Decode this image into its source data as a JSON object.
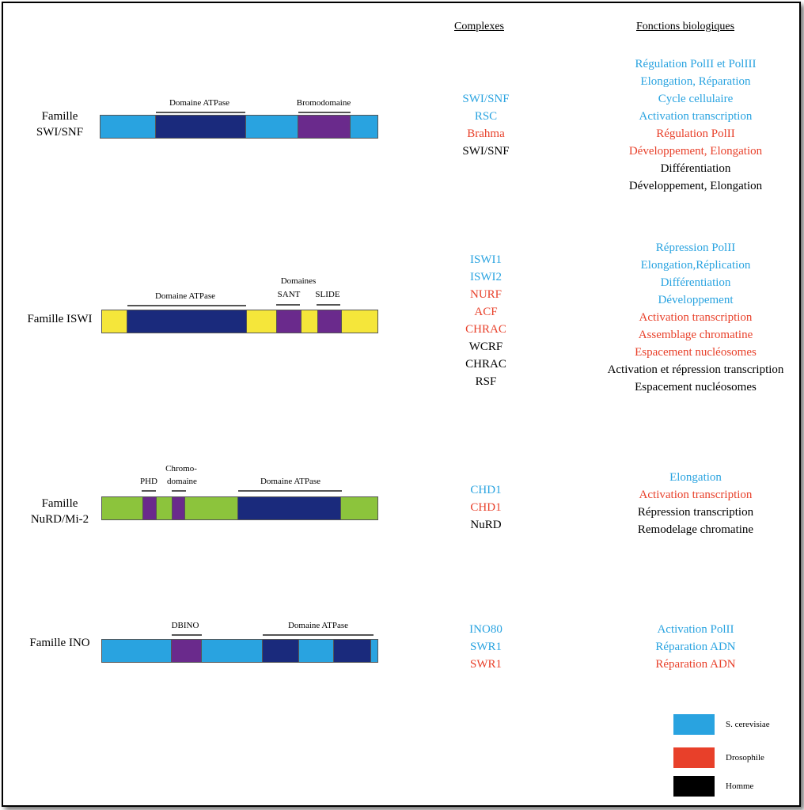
{
  "headers": {
    "complexes": "Complexes",
    "functions": "Fonctions biologiques"
  },
  "colors": {
    "cerevisiae": "#29a3e0",
    "drosophila": "#e8402a",
    "human": "#000000",
    "atpase": "#1a2a7c",
    "purple": "#6a2a8c",
    "yellow": "#f5e63a",
    "green": "#8cc43c"
  },
  "legend": [
    {
      "label": "S. cerevisiae",
      "color": "#29a3e0"
    },
    {
      "label": "Drosophile",
      "color": "#e8402a"
    },
    {
      "label": "Homme",
      "color": "#000000"
    }
  ],
  "families": [
    {
      "name": "Famille SWI/SNF",
      "domain_labels": [
        "Domaine ATPase",
        "Bromodomaine"
      ],
      "complexes": [
        {
          "text": "SWI/SNF",
          "org": "cerevisiae"
        },
        {
          "text": "RSC",
          "org": "cerevisiae"
        },
        {
          "text": "Brahma",
          "org": "drosophila"
        },
        {
          "text": "SWI/SNF",
          "org": "human"
        }
      ],
      "functions": [
        {
          "text": "Régulation PolII et PolIII",
          "org": "cerevisiae"
        },
        {
          "text": "Elongation, Réparation",
          "org": "cerevisiae"
        },
        {
          "text": "Cycle cellulaire",
          "org": "cerevisiae"
        },
        {
          "text": "Activation transcription",
          "org": "cerevisiae"
        },
        {
          "text": "Régulation PolII",
          "org": "drosophila"
        },
        {
          "text": "Développement, Elongation",
          "org": "drosophila"
        },
        {
          "text": "Différentiation",
          "org": "human"
        },
        {
          "text": "Développement, Elongation",
          "org": "human"
        }
      ]
    },
    {
      "name": "Famille ISWI",
      "domain_labels": [
        "Domaine ATPase",
        "Domaines",
        "SANT",
        "SLIDE"
      ],
      "complexes": [
        {
          "text": "ISWI1",
          "org": "cerevisiae"
        },
        {
          "text": "ISWI2",
          "org": "cerevisiae"
        },
        {
          "text": "NURF",
          "org": "drosophila"
        },
        {
          "text": "ACF",
          "org": "drosophila"
        },
        {
          "text": "CHRAC",
          "org": "drosophila"
        },
        {
          "text": "WCRF",
          "org": "human"
        },
        {
          "text": "CHRAC",
          "org": "human"
        },
        {
          "text": "RSF",
          "org": "human"
        }
      ],
      "functions": [
        {
          "text": "Répression PolII",
          "org": "cerevisiae"
        },
        {
          "text": "Elongation,Réplication",
          "org": "cerevisiae"
        },
        {
          "text": "Différentiation",
          "org": "cerevisiae"
        },
        {
          "text": "Développement",
          "org": "cerevisiae"
        },
        {
          "text": "Activation transcription",
          "org": "drosophila"
        },
        {
          "text": "Assemblage chromatine",
          "org": "drosophila"
        },
        {
          "text": "Espacement nucléosomes",
          "org": "drosophila"
        },
        {
          "text": "Activation et répression transcription",
          "org": "human"
        },
        {
          "text": "Espacement nucléosomes",
          "org": "human"
        }
      ]
    },
    {
      "name": "Famille NuRD/Mi-2",
      "domain_labels": [
        "PHD",
        "Chromo-",
        "domaine",
        "Domaine ATPase"
      ],
      "complexes": [
        {
          "text": "CHD1",
          "org": "cerevisiae"
        },
        {
          "text": "CHD1",
          "org": "drosophila"
        },
        {
          "text": "NuRD",
          "org": "human"
        }
      ],
      "functions": [
        {
          "text": "Elongation",
          "org": "cerevisiae"
        },
        {
          "text": "Activation transcription",
          "org": "drosophila"
        },
        {
          "text": "Répression transcription",
          "org": "human"
        },
        {
          "text": "Remodelage chromatine",
          "org": "human"
        }
      ]
    },
    {
      "name": "Famille INO",
      "domain_labels": [
        "DBINO",
        "Domaine ATPase"
      ],
      "complexes": [
        {
          "text": "INO80",
          "org": "cerevisiae"
        },
        {
          "text": "SWR1",
          "org": "cerevisiae"
        },
        {
          "text": "SWR1",
          "org": "drosophila"
        }
      ],
      "functions": [
        {
          "text": "Activation PolII",
          "org": "cerevisiae"
        },
        {
          "text": "Réparation ADN",
          "org": "cerevisiae"
        },
        {
          "text": "Réparation ADN",
          "org": "drosophila"
        }
      ]
    }
  ]
}
